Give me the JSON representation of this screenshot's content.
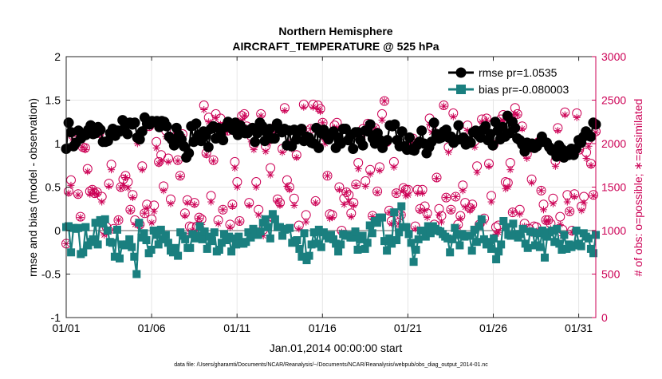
{
  "chart_data": {
    "type": "line",
    "title_line1": "Northern Hemisphere",
    "title_line2": "AIRCRAFT_TEMPERATURE @ 525 hPa",
    "xlabel": "Jan.01,2014 00:00:00 start",
    "ylabel_left": "rmse and bias (model - observation)",
    "ylabel_right": "# of obs: o=possible; ∗=assimilated",
    "footnote": "data file: /Users/gharamti/Documents/NCAR/Reanalysis/~/Documents/NCAR/Reanalysis/webpub/obs_diag_output_2014-01.nc",
    "x_ticks": [
      "01/01",
      "01/06",
      "01/11",
      "01/16",
      "01/21",
      "01/26",
      "01/31"
    ],
    "x_range_days": [
      1,
      32
    ],
    "ylim_left": [
      -1,
      2
    ],
    "y_ticks_left": [
      "-1",
      "-0.5",
      "0",
      "0.5",
      "1",
      "1.5",
      "2"
    ],
    "ylim_right": [
      0,
      3000
    ],
    "y_ticks_right": [
      "0",
      "500",
      "1000",
      "1500",
      "2000",
      "2500",
      "3000"
    ],
    "grid": true,
    "legend_placement": "top-right",
    "legend": {
      "rmse_label": "rmse pr=1.0535",
      "bias_label": "bias pr=-0.080003"
    },
    "colors": {
      "rmse": "#000000",
      "bias": "#1a7f7f",
      "obs": "#cc0055",
      "zero_line": "#b0b0b0",
      "grid": "#e6e6e6"
    },
    "series": {
      "rmse": [
        0.94,
        1.24,
        1.13,
        0.97,
        1.01,
        1.15,
        1.06,
        1.09,
        1.1,
        1.16,
        1.21,
        1.11,
        1.12,
        1.19,
        1.16,
        1.02,
        1.02,
        1.03,
        1.12,
        1.17,
        1.09,
        1.15,
        1.14,
        1.27,
        1.22,
        1.11,
        1.24,
        1.22,
        1.24,
        1.07,
        1.05,
        1.14,
        1.3,
        1.23,
        1.22,
        1.26,
        1.25,
        1.26,
        1.19,
        1.26,
        1.25,
        1.2,
        1.08,
        1.05,
        0.98,
        1.18,
        1.1,
        1.05,
        0.97,
        0.84,
        0.89,
        1.2,
        1.02,
        1.23,
        1.1,
        1.03,
        1.14,
        1.1,
        0.96,
        1.17,
        1.2,
        1.06,
        1.18,
        1.1,
        1.04,
        1.19,
        1.25,
        1.19,
        1.16,
        1.24,
        1.1,
        1.21,
        1.17,
        1.12,
        1.12,
        1.16,
        1.18,
        1.02,
        1.12,
        1.24,
        1.2,
        1.03,
        1.12,
        1.17,
        1.06,
        1.06,
        1.23,
        1.17,
        1.13,
        1.17,
        0.98,
        1.15,
        0.97,
        1.16,
        1.05,
        1.14,
        1.17,
        1.03,
        1.08,
        1.07,
        1.01,
        1.0,
        1.18,
        0.95,
        1.12,
        1.16,
        1.09,
        1.05,
        1.1,
        1.14,
        0.95,
        1.07,
        1.0,
        1.17,
        1.17,
        1.04,
        1.1,
        0.94,
        1.13,
        1.13,
        1.04,
        0.98,
        1.15,
        1.14,
        1.22,
        1.06,
        1.0,
        1.12,
        1.04,
        0.95,
        1.02,
        1.04,
        1.21,
        1.2,
        1.22,
        1.04,
        0.97,
        1.14,
        0.97,
        0.93,
        1.07,
        0.93,
        0.92,
        0.98,
        1.02,
        1.15,
        1.0,
        0.89,
        0.96,
        1.02,
        1.24,
        1.11,
        1.06,
        1.07,
        1.14,
        1.16,
        1.07,
        1.08,
        1.01,
        1.04,
        1.21,
        1.05,
        1.07,
        0.99,
        1.03,
        1.01,
        1.13,
        1.15,
        1.1,
        1.07,
        1.16,
        1.2,
        1.04,
        1.11,
        0.98,
        1.25,
        1.15,
        1.05,
        1.19,
        1.08,
        1.32,
        1.12,
        1.25,
        1.18,
        1.06,
        1.04,
        0.99,
        0.91,
        1.01,
        0.96,
        1.0,
        0.95,
        0.97,
        1.01,
        1.08,
        1.02,
        1.01,
        0.96,
        0.92,
        0.93,
        0.85,
        0.98,
        0.94,
        0.84,
        0.91,
        0.87,
        0.94,
        0.87,
        0.94,
        1.04,
        1.01,
        1.08,
        1.14,
        1.09,
        1.08,
        1.24,
        1.22
      ],
      "bias": [
        0.04,
        0.05,
        -0.25,
        0.03,
        0.02,
        0.03,
        -0.27,
        -0.25,
        0.04,
        -0.17,
        -0.13,
        -0.1,
        0.09,
        -0.16,
        0.12,
        0.08,
        0.13,
        0.0,
        -0.13,
        -0.14,
        -0.3,
        0.01,
        -0.32,
        -0.16,
        -0.17,
        -0.16,
        -0.1,
        -0.19,
        -0.3,
        -0.5,
        0.09,
        -0.08,
        -0.03,
        -0.11,
        -0.26,
        -0.22,
        0.0,
        -0.05,
        -0.16,
        0.01,
        -0.1,
        -0.05,
        -0.14,
        -0.23,
        -0.25,
        -0.2,
        -0.29,
        -0.02,
        -0.06,
        -0.1,
        -0.2,
        -0.2,
        -0.04,
        -0.09,
        -0.06,
        0.05,
        -0.1,
        -0.01,
        -0.21,
        -0.07,
        -0.12,
        -0.02,
        -0.24,
        -0.22,
        -0.14,
        -0.04,
        -0.11,
        -0.07,
        -0.24,
        -0.09,
        -0.16,
        -0.07,
        -0.15,
        -0.15,
        -0.13,
        -0.02,
        -0.08,
        0.02,
        -0.03,
        -0.05,
        -0.01,
        0.09,
        0.13,
        0.04,
        -0.09,
        0.19,
        0.13,
        0.04,
        0.04,
        -0.06,
        0.01,
        0.02,
        0.03,
        -0.14,
        -0.12,
        -0.11,
        -0.21,
        -0.3,
        -0.03,
        -0.34,
        -0.29,
        -0.16,
        -0.02,
        -0.15,
        0.01,
        -0.19,
        -0.02,
        -0.06,
        -0.09,
        -0.05,
        -0.1,
        -0.15,
        -0.24,
        -0.16,
        -0.04,
        -0.06,
        -0.05,
        -0.08,
        -0.08,
        -0.01,
        -0.22,
        -0.1,
        -0.06,
        -0.21,
        -0.14,
        0.06,
        -0.03,
        0.11,
        0.09,
        0.15,
        0.15,
        -0.12,
        -0.23,
        -0.09,
        -0.15,
        0.21,
        -0.11,
        -0.02,
        0.28,
        0.04,
        0.04,
        -0.04,
        -0.14,
        -0.36,
        -0.22,
        -0.1,
        0.0,
        0.0,
        -0.07,
        0.05,
        -0.03,
        0.05,
        0.02,
        0.0,
        -0.01,
        -0.04,
        -0.07,
        -0.09,
        -0.25,
        -0.1,
        0.03,
        -0.05,
        -0.17,
        -0.04,
        -0.07,
        -0.06,
        -0.06,
        -0.23,
        0.01,
        -0.13,
        0.05,
        0.13,
        -0.1,
        -0.16,
        -0.13,
        -0.21,
        -0.09,
        -0.33,
        -0.24,
        -0.16,
        0.11,
        0.04,
        -0.05,
        -0.06,
        0.08,
        -0.04,
        -0.08,
        -0.04,
        0.02,
        -0.15,
        -0.2,
        -0.01,
        -0.02,
        -0.17,
        -0.03,
        -0.19,
        0.0,
        -0.31,
        -0.07,
        -0.02,
        0.0,
        -0.13,
        0.02,
        -0.15,
        -0.22,
        -0.05,
        -0.21,
        -0.16,
        -0.19,
        -0.17,
        0.0,
        -0.15,
        -0.18,
        -0.03,
        -0.07,
        -0.09,
        -0.21,
        -0.26,
        -0.05
      ],
      "obs_possible": [
        850,
        1450,
        1580,
        2090,
        2130,
        1420,
        1160,
        1960,
        1950,
        1710,
        1450,
        1470,
        1430,
        1440,
        2120,
        1390,
        1010,
        1040,
        1540,
        1760,
        1020,
        2110,
        1120,
        1500,
        1590,
        1630,
        1560,
        1240,
        1410,
        1120,
        2060,
        1070,
        1740,
        1200,
        1300,
        2200,
        1130,
        1290,
        2020,
        1790,
        1870,
        1510,
        2150,
        1830,
        1360,
        2070,
        2080,
        1810,
        1630,
        2110,
        1200,
        1350,
        1050,
        1040,
        1320,
        1050,
        1150,
        1130,
        2440,
        1890,
        2300,
        1400,
        1810,
        2340,
        1120,
        2290,
        1240,
        2180,
        2150,
        1070,
        1300,
        1790,
        1560,
        1110,
        2320,
        2340,
        2200,
        1320,
        2080,
        1990,
        1560,
        1240,
        2340,
        1010,
        1970,
        2050,
        1720,
        1150,
        2190,
        1360,
        1320,
        1940,
        2410,
        1580,
        1500,
        2000,
        1370,
        1870,
        1060,
        2100,
        2450,
        1180,
        2040,
        2170,
        2450,
        1340,
        2440,
        2400,
        2240,
        2080,
        1630,
        1190,
        1180,
        2210,
        2240,
        1500,
        1000,
        1370,
        1440,
        1410,
        1200,
        1320,
        1530,
        1780,
        2070,
        2170,
        1570,
        2230,
        1700,
        1170,
        2180,
        1450,
        1730,
        2340,
        2490,
        2020,
        1230,
        1110,
        1790,
        1430,
        1090,
        1180,
        1490,
        1470,
        1470,
        2040,
        2060,
        1050,
        1470,
        1250,
        1470,
        1280,
        1200,
        2290,
        2190,
        1070,
        1610,
        1250,
        1170,
        2440,
        1380,
        1960,
        1240,
        2350,
        1390,
        1070,
        1170,
        1520,
        1320,
        2210,
        1260,
        1300,
        2030,
        1740,
        1070,
        2280,
        1140,
        2290,
        1770,
        1400,
        1990,
        1040,
        1060,
        2280,
        2330,
        1560,
        1550,
        1780,
        1210,
        2410,
        2340,
        1240,
        2200,
        1080,
        1880,
        1020,
        1590,
        1050,
        1040,
        2020,
        1460,
        1300,
        1120,
        1120,
        1080,
        1370,
        1800,
        2180,
        1160,
        1010,
        2360,
        1410,
        1220,
        1000,
        1420,
        2350,
        1930,
        1280,
        1390,
        1900,
        2050,
        1770,
        1410,
        2140
      ],
      "obs_assimilated": [
        850,
        1430,
        1520,
        2030,
        2120,
        1410,
        1150,
        1960,
        1930,
        1680,
        1420,
        1470,
        1430,
        1420,
        2100,
        1330,
        950,
        970,
        1510,
        1700,
        1010,
        2110,
        1120,
        1490,
        1520,
        1610,
        1490,
        1230,
        1380,
        1070,
        2000,
        1060,
        1700,
        1200,
        1260,
        2190,
        1090,
        1220,
        1950,
        1770,
        1800,
        1460,
        2080,
        1790,
        1310,
        2010,
        2080,
        1800,
        1620,
        2080,
        1170,
        1320,
        970,
        1000,
        1300,
        970,
        1140,
        1070,
        2390,
        1870,
        2250,
        1330,
        1800,
        2300,
        1080,
        2220,
        1240,
        2130,
        2140,
        1040,
        1280,
        1720,
        1500,
        1100,
        2270,
        2320,
        2180,
        1290,
        2020,
        1930,
        1500,
        1180,
        2320,
        940,
        1910,
        2000,
        1640,
        1140,
        2120,
        1340,
        1290,
        1900,
        2380,
        1510,
        1470,
        1940,
        1290,
        1840,
        1020,
        2040,
        2420,
        1100,
        2010,
        2170,
        2420,
        1320,
        2400,
        2370,
        2240,
        2000,
        1630,
        1140,
        1150,
        2180,
        2180,
        1470,
        980,
        1300,
        1440,
        1330,
        1160,
        1290,
        1520,
        1710,
        2020,
        2130,
        1510,
        2220,
        1650,
        1160,
        2180,
        1440,
        1690,
        2270,
        2490,
        2000,
        1210,
        1080,
        1730,
        1430,
        1080,
        1180,
        1460,
        1400,
        1410,
        2000,
        2050,
        1020,
        1430,
        1230,
        1430,
        1230,
        1150,
        2220,
        2130,
        1010,
        1600,
        1180,
        1100,
        2430,
        1380,
        1900,
        1230,
        2310,
        1390,
        1040,
        1140,
        1460,
        1270,
        2150,
        1230,
        1270,
        1960,
        1670,
        1070,
        2250,
        1100,
        2270,
        1740,
        1330,
        1960,
        960,
        980,
        2260,
        2260,
        1480,
        1500,
        1700,
        1210,
        2340,
        2330,
        1190,
        2170,
        1050,
        1830,
        980,
        1550,
        960,
        990,
        2000,
        1460,
        1240,
        1110,
        1110,
        1020,
        1310,
        1740,
        2150,
        1070,
        940,
        2330,
        1330,
        1220,
        980,
        1390,
        2300,
        1930,
        1230,
        1320,
        1830,
        1970,
        1750,
        1400,
        2130
      ]
    }
  }
}
